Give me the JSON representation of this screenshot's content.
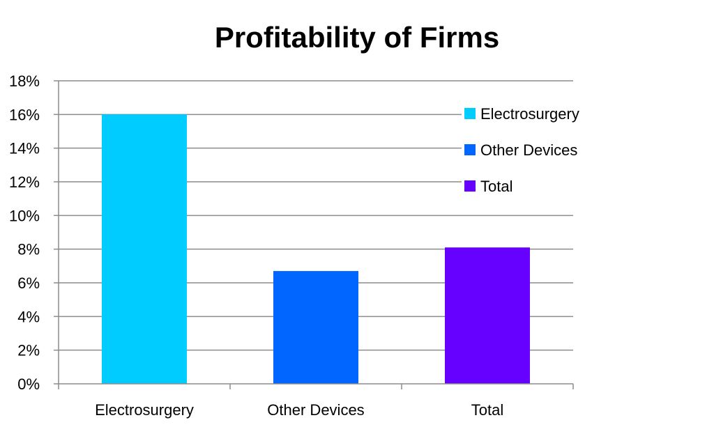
{
  "chart_data": {
    "type": "bar",
    "title": "Profitability of Firms",
    "xlabel": "",
    "ylabel": "",
    "categories": [
      "Electrosurgery",
      "Other Devices",
      "Total"
    ],
    "values": [
      16,
      6.7,
      8.1
    ],
    "colors": [
      "#00CCFF",
      "#0066FF",
      "#6600FF"
    ],
    "ylim": [
      0,
      18
    ],
    "yticks": [
      0,
      2,
      4,
      6,
      8,
      10,
      12,
      14,
      16,
      18
    ],
    "ytick_labels": [
      "0%",
      "2%",
      "4%",
      "6%",
      "8%",
      "10%",
      "12%",
      "14%",
      "16%",
      "18%"
    ],
    "grid": true,
    "legend": {
      "placement": "right",
      "entries": [
        "Electrosurgery",
        "Other Devices",
        "Total"
      ]
    }
  }
}
